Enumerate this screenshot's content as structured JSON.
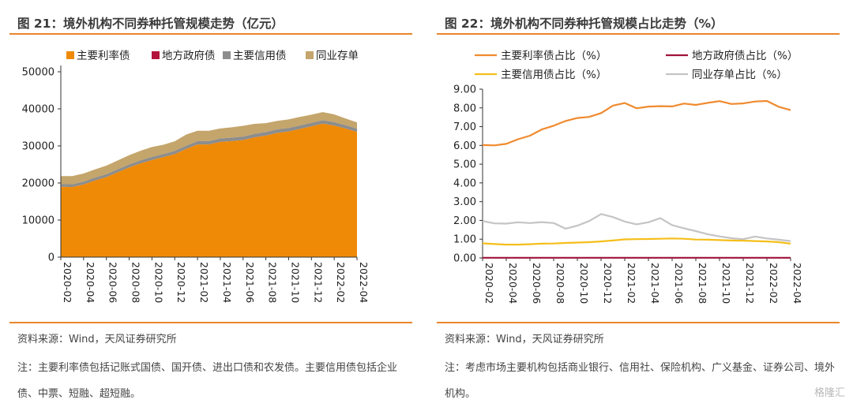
{
  "left": {
    "title": "图 21：境外机构不同券种托管规模走势（亿元）",
    "source": "资料来源：Wind，天风证券研究所",
    "note": "注：主要利率债包括记账式国债、国开债、进出口债和农发债。主要信用债包括企业债、中票、短融、超短融。"
  },
  "right": {
    "title": "图 22：境外机构不同券种托管规模占比走势（%）",
    "source": "资料来源：Wind，天风证券研究所",
    "note": "注：考虑市场主要机构包括商业银行、信用社、保险机构、广义基金、证券公司、境外机构。"
  },
  "watermark": "格隆汇",
  "chart_data": [
    {
      "type": "area",
      "stacked": true,
      "x": [
        "2020-02",
        "2020-03",
        "2020-04",
        "2020-05",
        "2020-06",
        "2020-07",
        "2020-08",
        "2020-09",
        "2020-10",
        "2020-11",
        "2020-12",
        "2021-01",
        "2021-02",
        "2021-03",
        "2021-04",
        "2021-05",
        "2021-06",
        "2021-07",
        "2021-08",
        "2021-09",
        "2021-10",
        "2021-11",
        "2021-12",
        "2022-01",
        "2022-02",
        "2022-03",
        "2022-04"
      ],
      "xticks": [
        "2020-02",
        "2020-04",
        "2020-06",
        "2020-08",
        "2020-10",
        "2020-12",
        "2021-02",
        "2021-04",
        "2021-06",
        "2021-08",
        "2021-10",
        "2021-12",
        "2022-02",
        "2022-04"
      ],
      "yticks": [
        "0",
        "10000",
        "20000",
        "30000",
        "40000",
        "50000"
      ],
      "ylim": [
        0,
        50000
      ],
      "legend_position": "top",
      "series": [
        {
          "name": "主要利率债",
          "color": "#ef8a07",
          "values": [
            19000,
            18900,
            19600,
            20700,
            21600,
            22900,
            24200,
            25300,
            26200,
            27000,
            27800,
            29200,
            30400,
            30400,
            31100,
            31300,
            31600,
            32300,
            32800,
            33500,
            33900,
            34600,
            35300,
            36000,
            35500,
            34700,
            33800
          ]
        },
        {
          "name": "地方政府债",
          "color": "#b3133a",
          "values": [
            5,
            5,
            5,
            5,
            5,
            5,
            5,
            5,
            5,
            5,
            5,
            5,
            5,
            5,
            5,
            5,
            5,
            5,
            5,
            5,
            5,
            5,
            5,
            5,
            5,
            5,
            5
          ]
        },
        {
          "name": "主要信用债",
          "color": "#8d8d8d",
          "values": [
            750,
            750,
            750,
            760,
            770,
            780,
            790,
            800,
            810,
            820,
            840,
            860,
            880,
            900,
            910,
            920,
            930,
            940,
            950,
            950,
            940,
            930,
            920,
            910,
            900,
            880,
            860
          ]
        },
        {
          "name": "同业存单",
          "color": "#c4a56b",
          "values": [
            2100,
            2200,
            2200,
            2200,
            2300,
            2400,
            2500,
            2600,
            2700,
            2500,
            2600,
            3000,
            2800,
            2800,
            2700,
            2800,
            2900,
            2700,
            2400,
            2300,
            2300,
            2300,
            2200,
            2200,
            2100,
            1800,
            1700
          ]
        }
      ]
    },
    {
      "type": "line",
      "x": [
        "2020-02",
        "2020-03",
        "2020-04",
        "2020-05",
        "2020-06",
        "2020-07",
        "2020-08",
        "2020-09",
        "2020-10",
        "2020-11",
        "2020-12",
        "2021-01",
        "2021-02",
        "2021-03",
        "2021-04",
        "2021-05",
        "2021-06",
        "2021-07",
        "2021-08",
        "2021-09",
        "2021-10",
        "2021-11",
        "2021-12",
        "2022-01",
        "2022-02",
        "2022-03",
        "2022-04"
      ],
      "xticks": [
        "2020-02",
        "2020-04",
        "2020-06",
        "2020-08",
        "2020-10",
        "2020-12",
        "2021-02",
        "2021-04",
        "2021-06",
        "2021-08",
        "2021-10",
        "2021-12",
        "2022-02",
        "2022-04"
      ],
      "yticks": [
        "0.00",
        "1.00",
        "2.00",
        "3.00",
        "4.00",
        "5.00",
        "6.00",
        "7.00",
        "8.00",
        "9.00"
      ],
      "ylim": [
        0,
        9
      ],
      "legend_position": "top",
      "series": [
        {
          "name": "主要利率债占比（%）",
          "color": "#f08a2e",
          "values": [
            6.02,
            6.0,
            6.08,
            6.33,
            6.52,
            6.85,
            7.05,
            7.3,
            7.46,
            7.52,
            7.72,
            8.12,
            8.26,
            7.98,
            8.07,
            8.09,
            8.08,
            8.23,
            8.16,
            8.27,
            8.36,
            8.21,
            8.24,
            8.34,
            8.37,
            8.06,
            7.88
          ]
        },
        {
          "name": "地方政府债占比（%）",
          "color": "#a0123a",
          "values": [
            0.01,
            0.01,
            0.01,
            0.01,
            0.01,
            0.01,
            0.01,
            0.01,
            0.01,
            0.01,
            0.01,
            0.01,
            0.01,
            0.01,
            0.01,
            0.01,
            0.01,
            0.01,
            0.01,
            0.01,
            0.01,
            0.01,
            0.01,
            0.01,
            0.01,
            0.01,
            0.01
          ]
        },
        {
          "name": "主要信用债占比（%）",
          "color": "#f5be1a",
          "values": [
            0.78,
            0.74,
            0.71,
            0.71,
            0.73,
            0.76,
            0.77,
            0.8,
            0.82,
            0.84,
            0.88,
            0.93,
            0.99,
            1.0,
            1.01,
            1.02,
            1.04,
            1.02,
            0.98,
            0.97,
            0.95,
            0.93,
            0.92,
            0.9,
            0.88,
            0.84,
            0.76
          ]
        },
        {
          "name": "同业存单占比（%）",
          "color": "#c4c4c4",
          "values": [
            1.97,
            1.84,
            1.83,
            1.9,
            1.86,
            1.91,
            1.86,
            1.56,
            1.72,
            1.97,
            2.34,
            2.18,
            1.94,
            1.79,
            1.9,
            2.12,
            1.75,
            1.58,
            1.43,
            1.26,
            1.15,
            1.05,
            1.0,
            1.14,
            1.04,
            0.97,
            0.9
          ]
        }
      ]
    }
  ]
}
